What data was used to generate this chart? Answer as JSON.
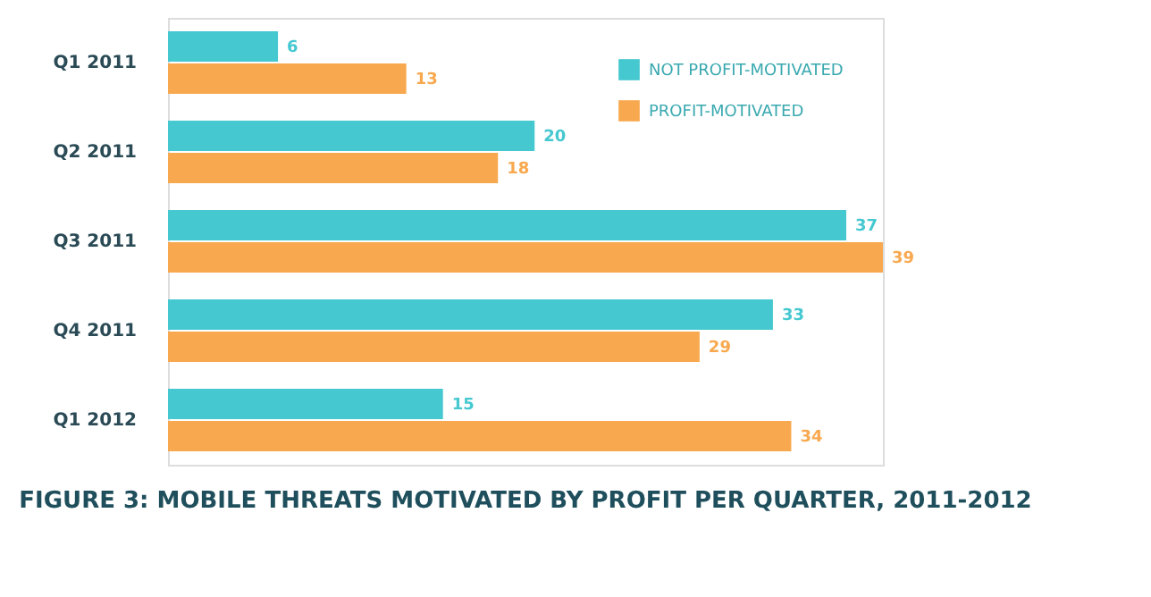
{
  "chart_data": {
    "type": "bar",
    "orientation": "horizontal",
    "title": "FIGURE 3: MOBILE THREATS MOTIVATED BY PROFIT PER QUARTER, 2011-2012",
    "categories": [
      "Q1 2011",
      "Q2 2011",
      "Q3 2011",
      "Q4 2011",
      "Q1 2012"
    ],
    "series": [
      {
        "name": "NOT PROFIT-MOTIVATED",
        "color": "#45c8d0",
        "values": [
          6,
          20,
          37,
          33,
          15
        ]
      },
      {
        "name": "PROFIT-MOTIVATED",
        "color": "#f8a94f",
        "values": [
          13,
          18,
          39,
          29,
          34
        ]
      }
    ],
    "data_labels": true,
    "legend": "top right",
    "tick_labels": "y"
  }
}
